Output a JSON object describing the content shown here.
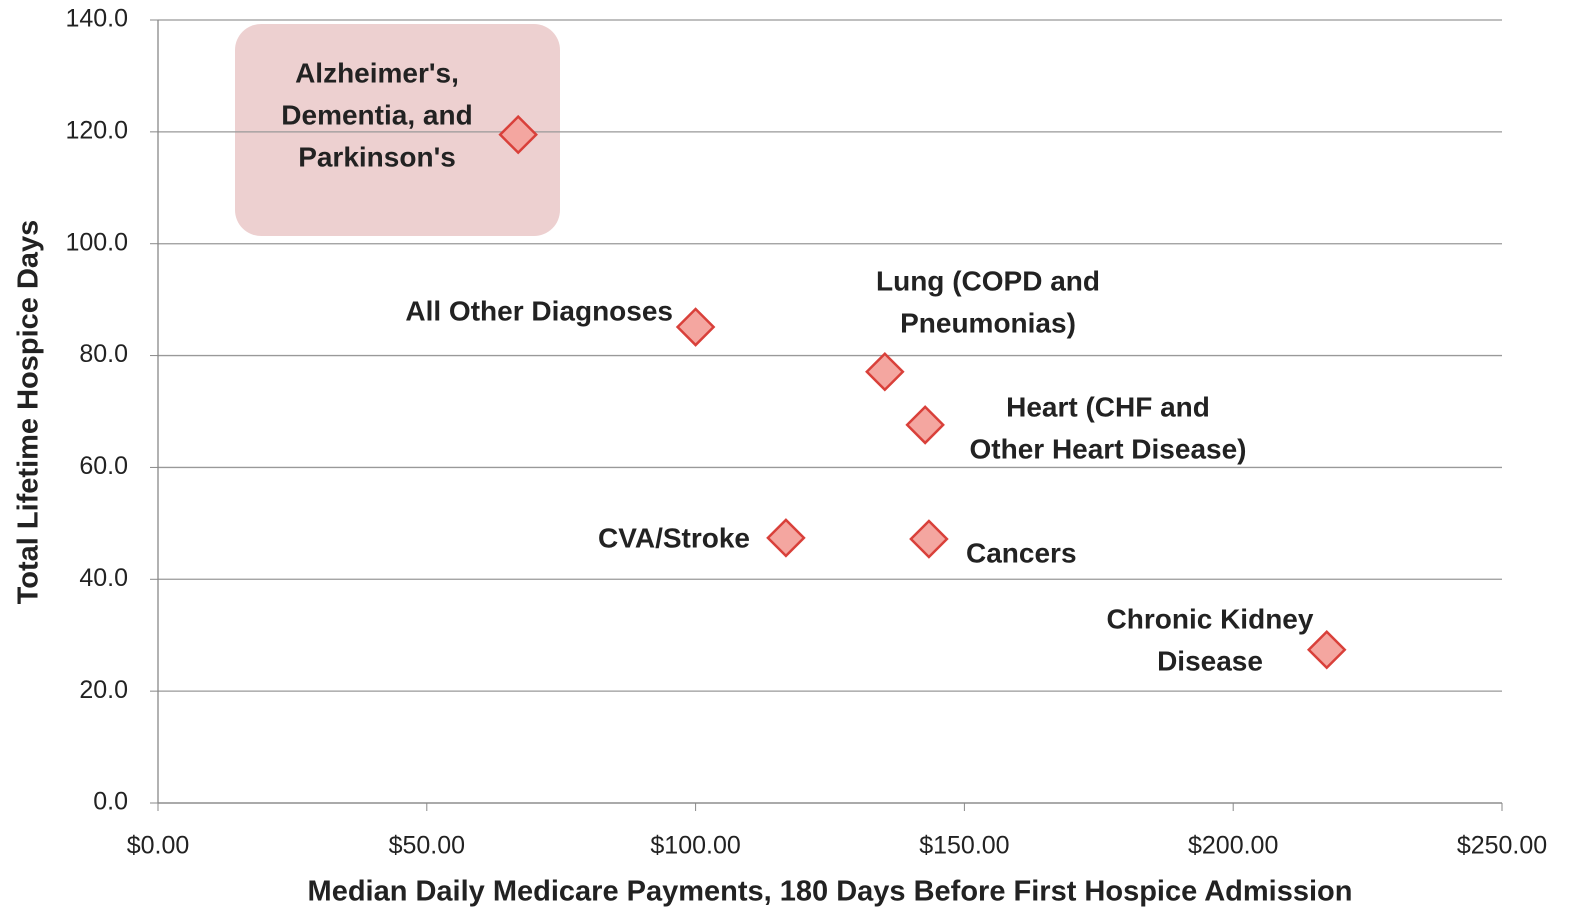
{
  "chart_data": {
    "type": "scatter",
    "x_label": "Median Daily Medicare Payments, 180 Days Before First Hospice Admission",
    "y_label": "Total Lifetime Hospice Days",
    "xlim": [
      0,
      250
    ],
    "ylim": [
      0,
      140
    ],
    "xticks": [
      {
        "value": 0,
        "label": "$0.00"
      },
      {
        "value": 50,
        "label": "$50.00"
      },
      {
        "value": 100,
        "label": "$100.00"
      },
      {
        "value": 150,
        "label": "$150.00"
      },
      {
        "value": 200,
        "label": "$200.00"
      },
      {
        "value": 250,
        "label": "$250.00"
      }
    ],
    "yticks": [
      {
        "value": 0,
        "label": "0.0"
      },
      {
        "value": 20,
        "label": "20.0"
      },
      {
        "value": 40,
        "label": "40.0"
      },
      {
        "value": 60,
        "label": "60.0"
      },
      {
        "value": 80,
        "label": "80.0"
      },
      {
        "value": 100,
        "label": "100.0"
      },
      {
        "value": 120,
        "label": "120.0"
      },
      {
        "value": 140,
        "label": "140.0"
      }
    ],
    "grid": true,
    "color": "#f4a6a0",
    "points": [
      {
        "label": [
          "Alzheimer's,",
          "Dementia, and",
          "Parkinson's"
        ],
        "x": 67,
        "y": 119.5
      },
      {
        "label": [
          "All Other Diagnoses"
        ],
        "x": 100,
        "y": 85.1
      },
      {
        "label": [
          "Lung (COPD and",
          "Pneumonias)"
        ],
        "x": 135.2,
        "y": 77.1
      },
      {
        "label": [
          "Heart (CHF and",
          "Other Heart Disease)"
        ],
        "x": 142.7,
        "y": 67.6
      },
      {
        "label": [
          "CVA/Stroke"
        ],
        "x": 116.8,
        "y": 47.4
      },
      {
        "label": [
          "Cancers"
        ],
        "x": 143.4,
        "y": 47.2
      },
      {
        "label": [
          "Chronic Kidney",
          "Disease"
        ],
        "x": 217.4,
        "y": 27.4
      }
    ]
  }
}
